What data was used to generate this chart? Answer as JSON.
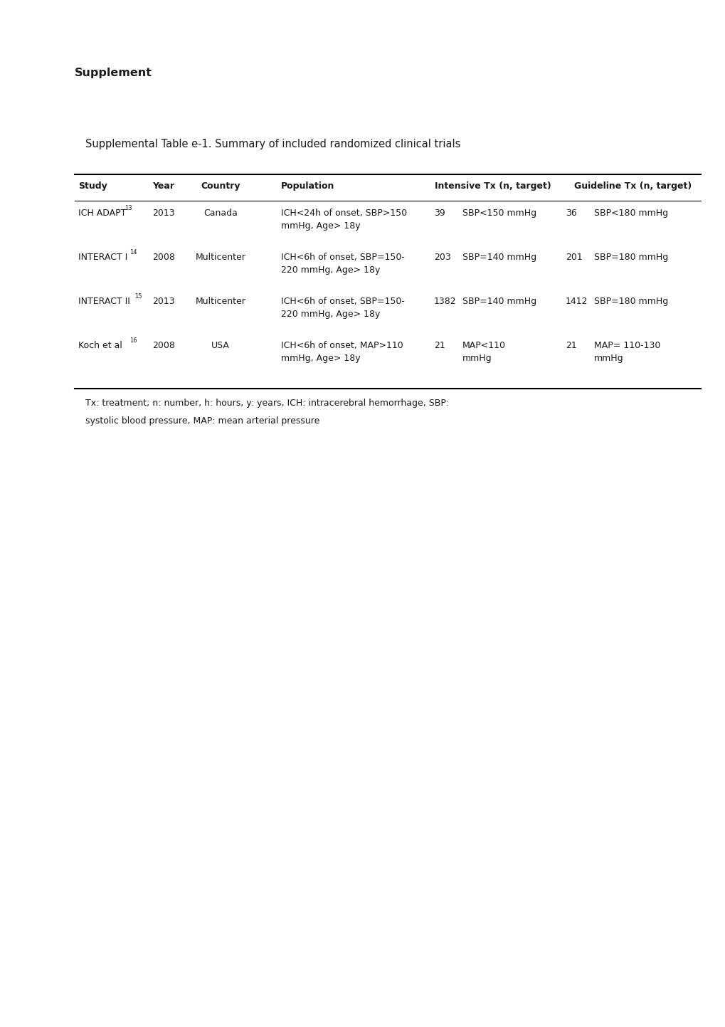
{
  "title_supplement": "Supplement",
  "table_title": "Supplemental Table e-1. Summary of included randomized clinical trials",
  "headers": [
    "Study",
    "Year",
    "Country",
    "Population",
    "Intensive Tx (n, target)",
    "Guideline Tx (n, target)"
  ],
  "rows": [
    {
      "study": "ICH ADAPT",
      "study_superscript": "13",
      "year": "2013",
      "country": "Canada",
      "population_line1": "ICH<24h of onset, SBP>150",
      "population_line2": "mmHg, Age> 18y",
      "intensive_n": "39",
      "intensive_target_line1": "SBP<150 mmHg",
      "intensive_target_line2": "",
      "guideline_n": "36",
      "guideline_target_line1": "SBP<180 mmHg",
      "guideline_target_line2": ""
    },
    {
      "study": "INTERACT I",
      "study_superscript": "14",
      "year": "2008",
      "country": "Multicenter",
      "population_line1": "ICH<6h of onset, SBP=150-",
      "population_line2": "220 mmHg, Age> 18y",
      "intensive_n": "203",
      "intensive_target_line1": "SBP=140 mmHg",
      "intensive_target_line2": "",
      "guideline_n": "201",
      "guideline_target_line1": "SBP=180 mmHg",
      "guideline_target_line2": ""
    },
    {
      "study": "INTERACT II",
      "study_superscript": "15",
      "year": "2013",
      "country": "Multicenter",
      "population_line1": "ICH<6h of onset, SBP=150-",
      "population_line2": "220 mmHg, Age> 18y",
      "intensive_n": "1382",
      "intensive_target_line1": "SBP=140 mmHg",
      "intensive_target_line2": "",
      "guideline_n": "1412",
      "guideline_target_line1": "SBP=180 mmHg",
      "guideline_target_line2": ""
    },
    {
      "study": "Koch et al",
      "study_superscript": "16",
      "year": "2008",
      "country": "USA",
      "population_line1": "ICH<6h of onset, MAP>110",
      "population_line2": "mmHg, Age> 18y",
      "intensive_n": "21",
      "intensive_target_line1": "MAP<110",
      "intensive_target_line2": "mmHg",
      "guideline_n": "21",
      "guideline_target_line1": "MAP= 110-130",
      "guideline_target_line2": "mmHg"
    }
  ],
  "footnote_line1": "Tx: treatment; n: number, h: hours, y: years, ICH: intracerebral hemorrhage, SBP:",
  "footnote_line2": "systolic blood pressure, MAP: mean arterial pressure",
  "bg_color": "#ffffff",
  "text_color": "#1a1a1a",
  "header_fontsize": 9.0,
  "body_fontsize": 9.0,
  "title_fontsize": 10.5,
  "supplement_fontsize": 11.5,
  "footnote_fontsize": 9.0
}
